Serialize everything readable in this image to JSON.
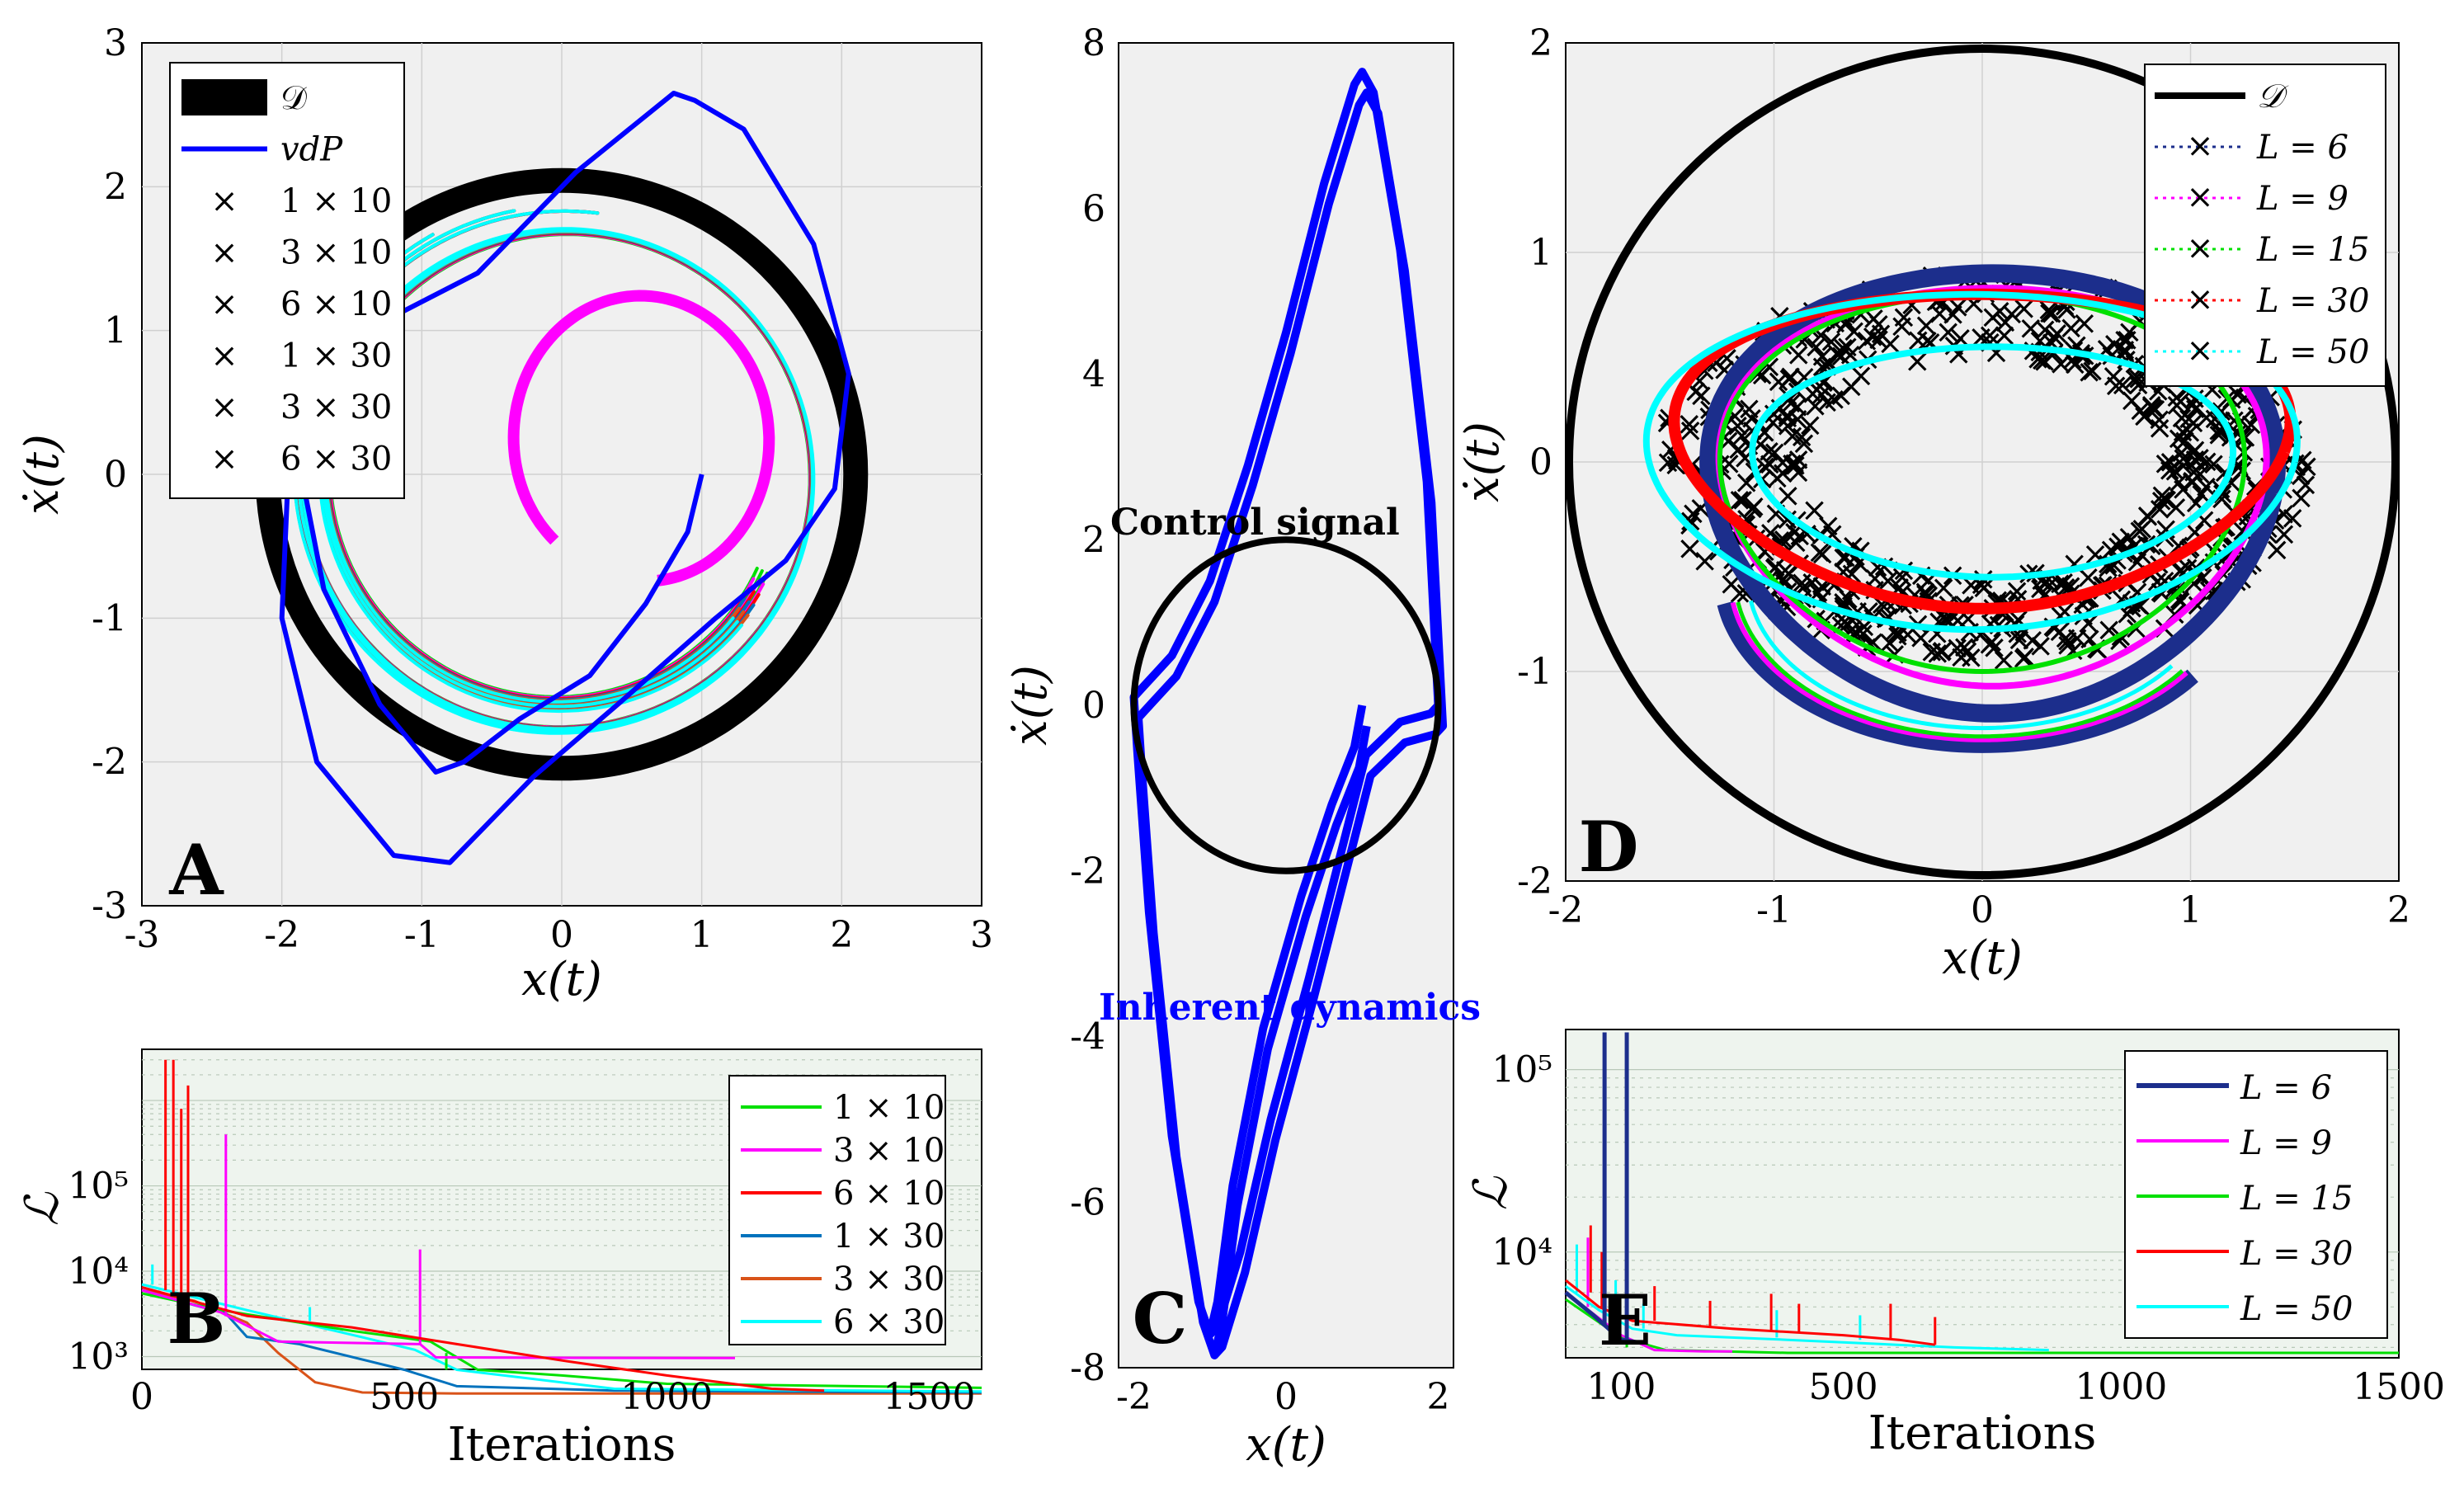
{
  "chart_data": [
    {
      "panel": "A",
      "type": "line",
      "xlabel": "x(t)",
      "ylabel": "ẋ(t)",
      "xlim": [
        -3,
        3
      ],
      "ylim": [
        -3,
        3
      ],
      "xticks": [
        "-3",
        "-2",
        "-1",
        "0",
        "1",
        "2",
        "3"
      ],
      "yticks": [
        "3",
        "2",
        "1",
        "0",
        "-1",
        "-2",
        "-3"
      ],
      "grid": true,
      "legend_position": "top-left",
      "series": [
        {
          "name": "𝒟",
          "color": "#000000"
        },
        {
          "name": "vdP",
          "color": "#0000ff"
        },
        {
          "name": "1 × 10",
          "color": "#00e000"
        },
        {
          "name": "3 × 10",
          "color": "#ff00ff"
        },
        {
          "name": "6 × 10",
          "color": "#ff0000"
        },
        {
          "name": "1 × 30",
          "color": "#0072bd"
        },
        {
          "name": "3 × 30",
          "color": "#d95319"
        },
        {
          "name": "6 × 30",
          "color": "#00ffff"
        }
      ],
      "disc_radius": 2.1
    },
    {
      "panel": "B",
      "type": "line",
      "xlabel": "Iterations",
      "ylabel": "ℒ",
      "xlim": [
        0,
        1600
      ],
      "xticks": [
        "0",
        "500",
        "1000",
        "1500"
      ],
      "yticks": [
        "10⁵",
        "10⁴",
        "10³"
      ],
      "yscale": "log",
      "legend_position": "right",
      "series": [
        {
          "name": "1 × 10",
          "color": "#00e000"
        },
        {
          "name": "3 × 10",
          "color": "#ff00ff"
        },
        {
          "name": "6 × 10",
          "color": "#ff0000"
        },
        {
          "name": "1 × 30",
          "color": "#0072bd"
        },
        {
          "name": "3 × 30",
          "color": "#d95319"
        },
        {
          "name": "6 × 30",
          "color": "#00ffff"
        }
      ]
    },
    {
      "panel": "C",
      "type": "line",
      "xlabel": "x(t)",
      "ylabel": "ẋ(t)",
      "xlim": [
        -2.2,
        2.2
      ],
      "ylim": [
        -8,
        8
      ],
      "xticks": [
        "-2",
        "0",
        "2"
      ],
      "yticks": [
        "8",
        "6",
        "4",
        "2",
        "0",
        "-2",
        "-4",
        "-6",
        "-8"
      ],
      "annotations": [
        "Control signal",
        "Inherent dynamics"
      ],
      "circle_radius": 2
    },
    {
      "panel": "D",
      "type": "scatter",
      "xlabel": "x(t)",
      "ylabel": "ẋ(t)",
      "xlim": [
        -2,
        2
      ],
      "ylim": [
        -2,
        2
      ],
      "xticks": [
        "-2",
        "-1",
        "0",
        "1",
        "2"
      ],
      "yticks": [
        "2",
        "1",
        "0",
        "-1",
        "-2"
      ],
      "legend_position": "top-right",
      "series": [
        {
          "name": "𝒟",
          "color": "#000000"
        },
        {
          "name": "L = 6",
          "color": "#1c2e8c"
        },
        {
          "name": "L = 9",
          "color": "#ff00ff"
        },
        {
          "name": "L = 15",
          "color": "#00e000"
        },
        {
          "name": "L = 30",
          "color": "#ff0000"
        },
        {
          "name": "L = 50",
          "color": "#00ffff"
        }
      ],
      "disc_radius": 2
    },
    {
      "panel": "E",
      "type": "line",
      "xlabel": "Iterations",
      "ylabel": "ℒ",
      "xlim": [
        0,
        1500
      ],
      "xticks": [
        "100",
        "500",
        "1000",
        "1500"
      ],
      "yticks": [
        "10⁵",
        "10⁴"
      ],
      "yscale": "log",
      "legend_position": "right",
      "series": [
        {
          "name": "L = 6",
          "color": "#1c2e8c"
        },
        {
          "name": "L = 9",
          "color": "#ff00ff"
        },
        {
          "name": "L = 15",
          "color": "#00e000"
        },
        {
          "name": "L = 30",
          "color": "#ff0000"
        },
        {
          "name": "L = 50",
          "color": "#00ffff"
        }
      ]
    }
  ]
}
